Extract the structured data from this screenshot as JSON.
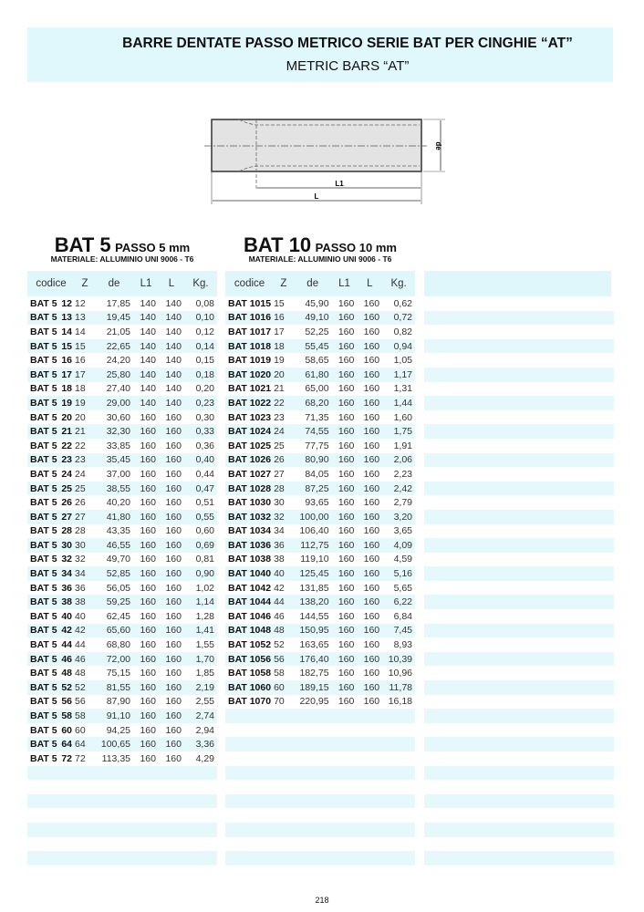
{
  "header": {
    "title": "BARRE DENTATE PASSO METRICO SERIE BAT PER CINGHIE “AT”",
    "subtitle": "METRIC BARS “AT”"
  },
  "drawing": {
    "labels": {
      "de": "de",
      "L1": "L1",
      "L": "L"
    }
  },
  "tables": [
    {
      "name": "BAT 5",
      "pitch": "PASSO 5 mm",
      "material": "MATERIALE: ALLUMINIO UNI 9006 - T6",
      "columns": [
        "codice",
        "Z",
        "de",
        "L1",
        "L",
        "Kg."
      ],
      "rows": [
        [
          "BAT 5",
          "12",
          "12",
          "17,85",
          "140",
          "140",
          "0,08"
        ],
        [
          "BAT 5",
          "13",
          "13",
          "19,45",
          "140",
          "140",
          "0,10"
        ],
        [
          "BAT 5",
          "14",
          "14",
          "21,05",
          "140",
          "140",
          "0,12"
        ],
        [
          "BAT 5",
          "15",
          "15",
          "22,65",
          "140",
          "140",
          "0,14"
        ],
        [
          "BAT 5",
          "16",
          "16",
          "24,20",
          "140",
          "140",
          "0,15"
        ],
        [
          "BAT 5",
          "17",
          "17",
          "25,80",
          "140",
          "140",
          "0,18"
        ],
        [
          "BAT 5",
          "18",
          "18",
          "27,40",
          "140",
          "140",
          "0,20"
        ],
        [
          "BAT 5",
          "19",
          "19",
          "29,00",
          "140",
          "140",
          "0,23"
        ],
        [
          "BAT 5",
          "20",
          "20",
          "30,60",
          "160",
          "160",
          "0,30"
        ],
        [
          "BAT 5",
          "21",
          "21",
          "32,30",
          "160",
          "160",
          "0,33"
        ],
        [
          "BAT 5",
          "22",
          "22",
          "33,85",
          "160",
          "160",
          "0,36"
        ],
        [
          "BAT 5",
          "23",
          "23",
          "35,45",
          "160",
          "160",
          "0,40"
        ],
        [
          "BAT 5",
          "24",
          "24",
          "37,00",
          "160",
          "160",
          "0,44"
        ],
        [
          "BAT 5",
          "25",
          "25",
          "38,55",
          "160",
          "160",
          "0,47"
        ],
        [
          "BAT 5",
          "26",
          "26",
          "40,20",
          "160",
          "160",
          "0,51"
        ],
        [
          "BAT 5",
          "27",
          "27",
          "41,80",
          "160",
          "160",
          "0,55"
        ],
        [
          "BAT 5",
          "28",
          "28",
          "43,35",
          "160",
          "160",
          "0,60"
        ],
        [
          "BAT 5",
          "30",
          "30",
          "46,55",
          "160",
          "160",
          "0,69"
        ],
        [
          "BAT 5",
          "32",
          "32",
          "49,70",
          "160",
          "160",
          "0,81"
        ],
        [
          "BAT 5",
          "34",
          "34",
          "52,85",
          "160",
          "160",
          "0,90"
        ],
        [
          "BAT 5",
          "36",
          "36",
          "56,05",
          "160",
          "160",
          "1,02"
        ],
        [
          "BAT 5",
          "38",
          "38",
          "59,25",
          "160",
          "160",
          "1,14"
        ],
        [
          "BAT 5",
          "40",
          "40",
          "62,45",
          "160",
          "160",
          "1,28"
        ],
        [
          "BAT 5",
          "42",
          "42",
          "65,60",
          "160",
          "160",
          "1,41"
        ],
        [
          "BAT 5",
          "44",
          "44",
          "68,80",
          "160",
          "160",
          "1,55"
        ],
        [
          "BAT 5",
          "46",
          "46",
          "72,00",
          "160",
          "160",
          "1,70"
        ],
        [
          "BAT 5",
          "48",
          "48",
          "75,15",
          "160",
          "160",
          "1,85"
        ],
        [
          "BAT 5",
          "52",
          "52",
          "81,55",
          "160",
          "160",
          "2,19"
        ],
        [
          "BAT 5",
          "56",
          "56",
          "87,90",
          "160",
          "160",
          "2,55"
        ],
        [
          "BAT 5",
          "58",
          "58",
          "91,10",
          "160",
          "160",
          "2,74"
        ],
        [
          "BAT 5",
          "60",
          "60",
          "94,25",
          "160",
          "160",
          "2,94"
        ],
        [
          "BAT 5",
          "64",
          "64",
          "100,65",
          "160",
          "160",
          "3,36"
        ],
        [
          "BAT 5",
          "72",
          "72",
          "113,35",
          "160",
          "160",
          "4,29"
        ]
      ]
    },
    {
      "name": "BAT 10",
      "pitch": "PASSO 10 mm",
      "material": "MATERIALE: ALLUMINIO UNI 9006 - T6",
      "columns": [
        "codice",
        "Z",
        "de",
        "L1",
        "L",
        "Kg."
      ],
      "rows": [
        [
          "BAT 10",
          "15",
          "15",
          "45,90",
          "160",
          "160",
          "0,62"
        ],
        [
          "BAT 10",
          "16",
          "16",
          "49,10",
          "160",
          "160",
          "0,72"
        ],
        [
          "BAT 10",
          "17",
          "17",
          "52,25",
          "160",
          "160",
          "0,82"
        ],
        [
          "BAT 10",
          "18",
          "18",
          "55,45",
          "160",
          "160",
          "0,94"
        ],
        [
          "BAT 10",
          "19",
          "19",
          "58,65",
          "160",
          "160",
          "1,05"
        ],
        [
          "BAT 10",
          "20",
          "20",
          "61,80",
          "160",
          "160",
          "1,17"
        ],
        [
          "BAT 10",
          "21",
          "21",
          "65,00",
          "160",
          "160",
          "1,31"
        ],
        [
          "BAT 10",
          "22",
          "22",
          "68,20",
          "160",
          "160",
          "1,44"
        ],
        [
          "BAT 10",
          "23",
          "23",
          "71,35",
          "160",
          "160",
          "1,60"
        ],
        [
          "BAT 10",
          "24",
          "24",
          "74,55",
          "160",
          "160",
          "1,75"
        ],
        [
          "BAT 10",
          "25",
          "25",
          "77,75",
          "160",
          "160",
          "1,91"
        ],
        [
          "BAT 10",
          "26",
          "26",
          "80,90",
          "160",
          "160",
          "2,06"
        ],
        [
          "BAT 10",
          "27",
          "27",
          "84,05",
          "160",
          "160",
          "2,23"
        ],
        [
          "BAT 10",
          "28",
          "28",
          "87,25",
          "160",
          "160",
          "2,42"
        ],
        [
          "BAT 10",
          "30",
          "30",
          "93,65",
          "160",
          "160",
          "2,79"
        ],
        [
          "BAT 10",
          "32",
          "32",
          "100,00",
          "160",
          "160",
          "3,20"
        ],
        [
          "BAT 10",
          "34",
          "34",
          "106,40",
          "160",
          "160",
          "3,65"
        ],
        [
          "BAT 10",
          "36",
          "36",
          "112,75",
          "160",
          "160",
          "4,09"
        ],
        [
          "BAT 10",
          "38",
          "38",
          "119,10",
          "160",
          "160",
          "4,59"
        ],
        [
          "BAT 10",
          "40",
          "40",
          "125,45",
          "160",
          "160",
          "5,16"
        ],
        [
          "BAT 10",
          "42",
          "42",
          "131,85",
          "160",
          "160",
          "5,65"
        ],
        [
          "BAT 10",
          "44",
          "44",
          "138,20",
          "160",
          "160",
          "6,22"
        ],
        [
          "BAT 10",
          "46",
          "46",
          "144,55",
          "160",
          "160",
          "6,84"
        ],
        [
          "BAT 10",
          "48",
          "48",
          "150,95",
          "160",
          "160",
          "7,45"
        ],
        [
          "BAT 10",
          "52",
          "52",
          "163,65",
          "160",
          "160",
          "8,93"
        ],
        [
          "BAT 10",
          "56",
          "56",
          "176,40",
          "160",
          "160",
          "10,39"
        ],
        [
          "BAT 10",
          "58",
          "58",
          "182,75",
          "160",
          "160",
          "10,96"
        ],
        [
          "BAT 10",
          "60",
          "60",
          "189,15",
          "160",
          "160",
          "11,78"
        ],
        [
          "BAT 10",
          "70",
          "70",
          "220,95",
          "160",
          "160",
          "16,18"
        ]
      ]
    }
  ],
  "page_number": "218"
}
